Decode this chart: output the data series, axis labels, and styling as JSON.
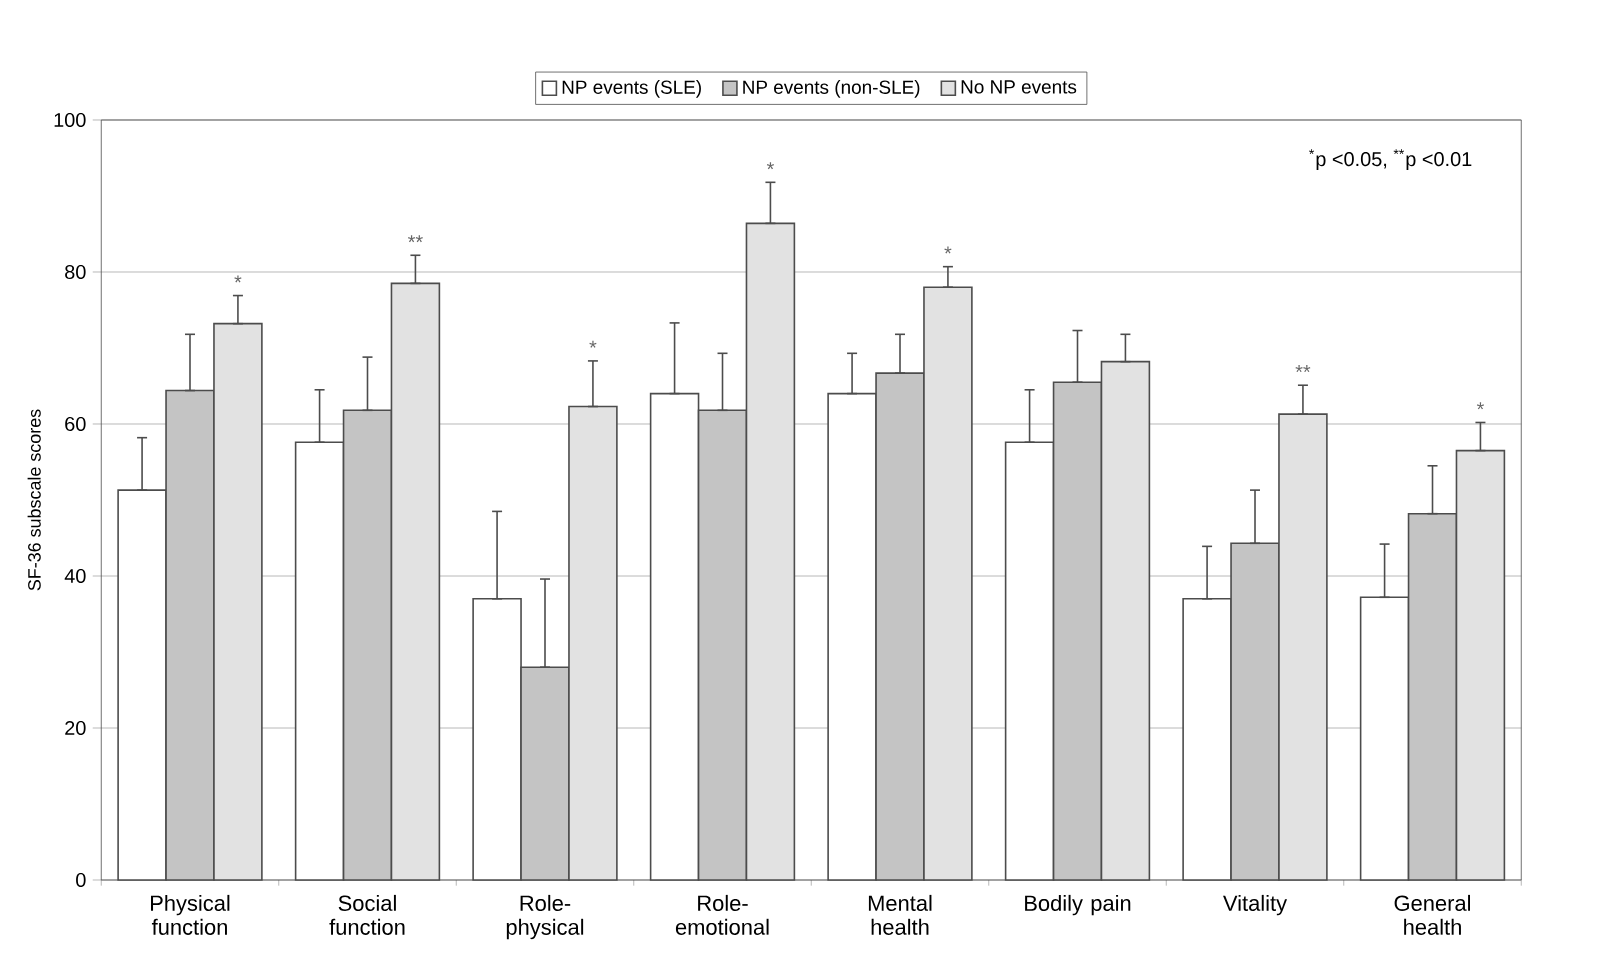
{
  "chart_data": {
    "type": "bar",
    "ylabel": "SF-36 subscale scores",
    "categories": [
      "Physical function",
      "Social function",
      "Role-physical",
      "Role-emotional",
      "Mental health",
      "Bodily pain",
      "Vitality",
      "General health"
    ],
    "series": [
      {
        "name": "NP events (SLE)",
        "color": "#ffffff",
        "values": [
          51.3,
          57.6,
          37.0,
          64.0,
          64.0,
          57.6,
          37.0,
          37.2
        ],
        "errors": [
          [
            51.3,
            58.2
          ],
          [
            57.6,
            64.5
          ],
          [
            37.0,
            48.5
          ],
          [
            64.0,
            73.3
          ],
          [
            64.0,
            69.3
          ],
          [
            57.6,
            64.5
          ],
          [
            37.0,
            43.9
          ],
          [
            37.2,
            44.2
          ]
        ]
      },
      {
        "name": "NP events (non-SLE)",
        "color": "#c4c4c4",
        "values": [
          64.4,
          61.8,
          28.0,
          61.8,
          66.7,
          65.5,
          44.3,
          48.2
        ],
        "errors": [
          [
            64.4,
            71.8
          ],
          [
            61.8,
            68.8
          ],
          [
            28.0,
            39.6
          ],
          [
            61.8,
            69.3
          ],
          [
            66.7,
            71.8
          ],
          [
            65.5,
            72.3
          ],
          [
            44.3,
            51.3
          ],
          [
            48.2,
            54.5
          ]
        ]
      },
      {
        "name": "No NP events",
        "color": "#e2e2e2",
        "values": [
          73.2,
          78.5,
          62.3,
          86.4,
          78.0,
          68.2,
          61.3,
          56.5
        ],
        "errors": [
          [
            73.2,
            76.9
          ],
          [
            78.5,
            82.2
          ],
          [
            62.3,
            68.3
          ],
          [
            86.4,
            91.8
          ],
          [
            78.0,
            80.7
          ],
          [
            68.2,
            71.8
          ],
          [
            61.3,
            65.1
          ],
          [
            56.5,
            60.2
          ]
        ],
        "value_labels": [
          "*",
          "**",
          "*",
          "*",
          "*",
          null,
          "**",
          "*"
        ]
      }
    ],
    "ylim": [
      0,
      100
    ],
    "yticks": [
      0,
      20,
      40,
      60,
      80,
      100
    ],
    "grid": "y",
    "legend": "top",
    "annotations": [
      "$^{*}$p <0.05, $^{**}$p <0.01"
    ]
  }
}
